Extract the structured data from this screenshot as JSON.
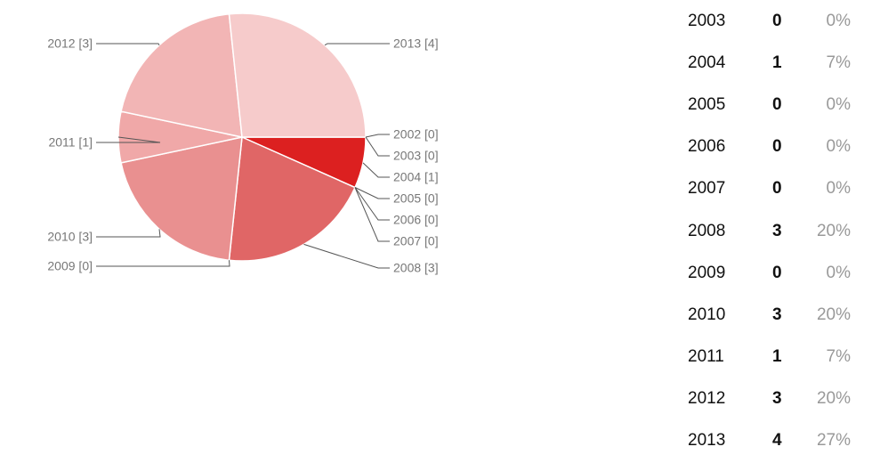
{
  "chart_data": {
    "type": "pie",
    "title": "",
    "slices": [
      {
        "label": "2002 [0]",
        "year": "2002",
        "value": 0,
        "color": "#dc2020"
      },
      {
        "label": "2003 [0]",
        "year": "2003",
        "value": 0,
        "color": "#dc2020"
      },
      {
        "label": "2004 [1]",
        "year": "2004",
        "value": 1,
        "color": "#dc2020"
      },
      {
        "label": "2005 [0]",
        "year": "2005",
        "value": 0,
        "color": "#e06666"
      },
      {
        "label": "2006 [0]",
        "year": "2006",
        "value": 0,
        "color": "#e06666"
      },
      {
        "label": "2007 [0]",
        "year": "2007",
        "value": 0,
        "color": "#e06666"
      },
      {
        "label": "2008 [3]",
        "year": "2008",
        "value": 3,
        "color": "#e06666"
      },
      {
        "label": "2009 [0]",
        "year": "2009",
        "value": 0,
        "color": "#e99090"
      },
      {
        "label": "2010 [3]",
        "year": "2010",
        "value": 3,
        "color": "#e99090"
      },
      {
        "label": "2011 [1]",
        "year": "2011",
        "value": 1,
        "color": "#f0a8a8"
      },
      {
        "label": "2012 [3]",
        "year": "2012",
        "value": 3,
        "color": "#f2b5b5"
      },
      {
        "label": "2013 [4]",
        "year": "2013",
        "value": 4,
        "color": "#f6cbcb"
      }
    ]
  },
  "summary_table": [
    {
      "year": "2003",
      "count": "0",
      "percent": "0%"
    },
    {
      "year": "2004",
      "count": "1",
      "percent": "7%"
    },
    {
      "year": "2005",
      "count": "0",
      "percent": "0%"
    },
    {
      "year": "2006",
      "count": "0",
      "percent": "0%"
    },
    {
      "year": "2007",
      "count": "0",
      "percent": "0%"
    },
    {
      "year": "2008",
      "count": "3",
      "percent": "20%"
    },
    {
      "year": "2009",
      "count": "0",
      "percent": "0%"
    },
    {
      "year": "2010",
      "count": "3",
      "percent": "20%"
    },
    {
      "year": "2011",
      "count": "1",
      "percent": "7%"
    },
    {
      "year": "2012",
      "count": "3",
      "percent": "20%"
    },
    {
      "year": "2013",
      "count": "4",
      "percent": "27%"
    }
  ]
}
